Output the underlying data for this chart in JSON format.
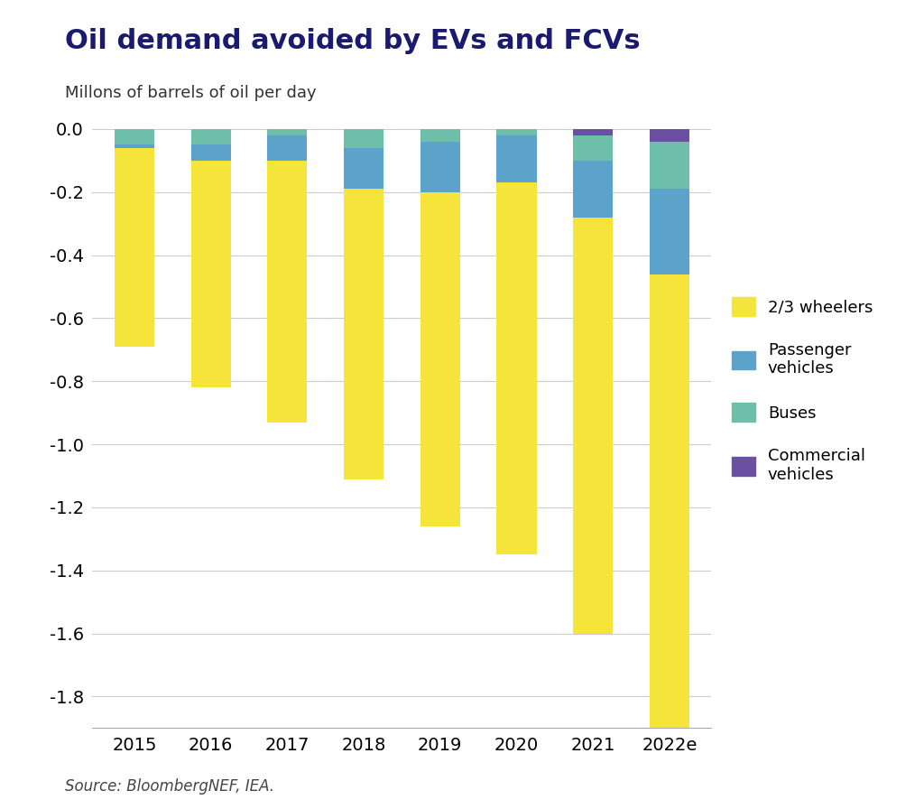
{
  "title": "Oil demand avoided by EVs and FCVs",
  "subtitle": "Millons of barrels of oil per day",
  "source": "Source: BloombergNEF, IEA.",
  "years": [
    "2015",
    "2016",
    "2017",
    "2018",
    "2019",
    "2020",
    "2021",
    "2022e"
  ],
  "wheelers": [
    -0.63,
    -0.72,
    -0.83,
    -0.92,
    -1.06,
    -1.18,
    -1.32,
    -1.65
  ],
  "passenger": [
    -0.01,
    -0.05,
    -0.08,
    -0.13,
    -0.16,
    -0.15,
    -0.18,
    -0.27
  ],
  "buses": [
    -0.05,
    -0.05,
    -0.02,
    -0.06,
    -0.04,
    -0.02,
    -0.08,
    -0.15
  ],
  "commercial": [
    -0.0,
    -0.0,
    -0.0,
    -0.0,
    -0.0,
    -0.0,
    -0.02,
    -0.04
  ],
  "colors": {
    "wheelers": "#F5E53B",
    "passenger": "#5BA3CB",
    "buses": "#6DBFAA",
    "commercial": "#6B4FA0"
  },
  "ylim": [
    -1.9,
    0.05
  ],
  "yticks": [
    0.0,
    -0.2,
    -0.4,
    -0.6,
    -0.8,
    -1.0,
    -1.2,
    -1.4,
    -1.6,
    -1.8
  ],
  "title_color": "#1a1a6e",
  "subtitle_color": "#333333",
  "source_color": "#444444",
  "background_color": "#ffffff",
  "legend_labels": [
    "2/3 wheelers",
    "Passenger\nvehicles",
    "Buses",
    "Commercial\nvehicles"
  ]
}
